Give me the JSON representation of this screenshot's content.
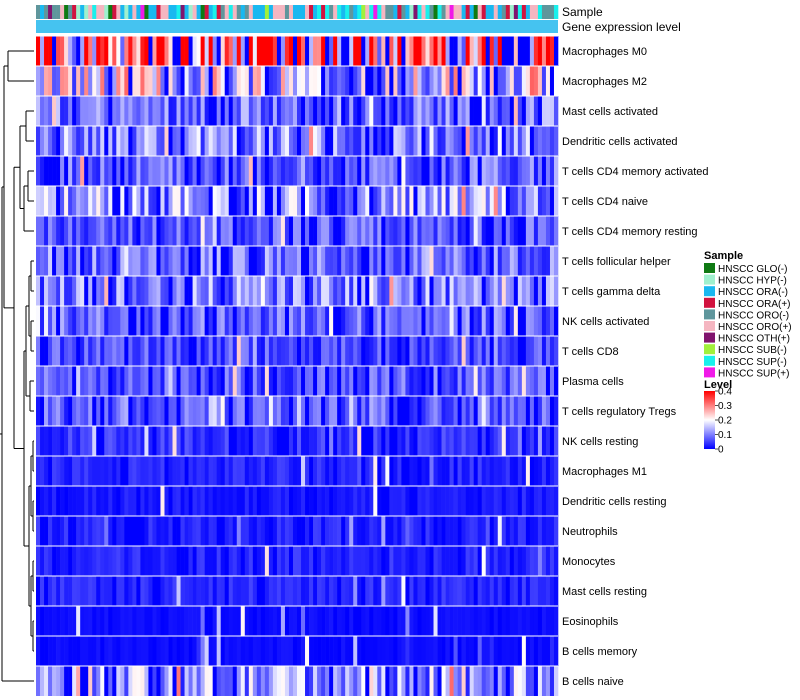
{
  "chart_data": {
    "type": "heatmap",
    "annotation_tracks": [
      "Sample",
      "Gene expression level"
    ],
    "rows": [
      {
        "label": "Macrophages M0",
        "level": 0.32
      },
      {
        "label": "Macrophages M2",
        "level": 0.18
      },
      {
        "label": "Mast cells activated",
        "level": 0.09
      },
      {
        "label": "Dendritic cells activated",
        "level": 0.11
      },
      {
        "label": "T cells CD4 memory activated",
        "level": 0.08
      },
      {
        "label": "T cells CD4 naive",
        "level": 0.12
      },
      {
        "label": "T cells CD4 memory resting",
        "level": 0.07
      },
      {
        "label": "T cells follicular helper",
        "level": 0.09
      },
      {
        "label": "T cells gamma delta",
        "level": 0.1
      },
      {
        "label": "NK cells activated",
        "level": 0.08
      },
      {
        "label": "T cells CD8",
        "level": 0.06
      },
      {
        "label": "Plasma cells",
        "level": 0.07
      },
      {
        "label": "T cells regulatory  Tregs",
        "level": 0.07
      },
      {
        "label": "NK cells resting",
        "level": 0.04
      },
      {
        "label": "Macrophages M1",
        "level": 0.03
      },
      {
        "label": "Dendritic cells resting",
        "level": 0.02
      },
      {
        "label": "Neutrophils",
        "level": 0.03
      },
      {
        "label": "Monocytes",
        "level": 0.03
      },
      {
        "label": "Mast cells resting",
        "level": 0.03
      },
      {
        "label": "Eosinophils",
        "level": 0.01
      },
      {
        "label": "B cells memory",
        "level": 0.01
      },
      {
        "label": "B cells naive",
        "level": 0.12
      }
    ],
    "num_samples": 130,
    "sample_legend": {
      "title": "Sample",
      "entries": [
        {
          "label": "HNSCC GLO(-)",
          "color": "#0f7a13"
        },
        {
          "label": "HNSCC HYP(-)",
          "color": "#9ff0ce"
        },
        {
          "label": "HNSCC ORA(-)",
          "color": "#19b8f0"
        },
        {
          "label": "HNSCC ORA(+)",
          "color": "#d1133f"
        },
        {
          "label": "HNSCC ORO(-)",
          "color": "#5f969c"
        },
        {
          "label": "HNSCC ORO(+)",
          "color": "#f5b6c1"
        },
        {
          "label": "HNSCC OTH(+)",
          "color": "#80146e"
        },
        {
          "label": "HNSCC SUB(-)",
          "color": "#a1f03c"
        },
        {
          "label": "HNSCC SUP(-)",
          "color": "#19f0ec"
        },
        {
          "label": "HNSCC SUP(+)",
          "color": "#f01ae8"
        }
      ]
    },
    "level_legend": {
      "title": "Level",
      "ticks": [
        0.4,
        0.3,
        0.2,
        0.1,
        0
      ],
      "tick_labels": [
        "0.4",
        "0.3",
        "0.2",
        "0.1",
        "0"
      ],
      "range": [
        0,
        0.4
      ]
    },
    "color_scale": {
      "low": "#0000ff",
      "mid": "#ffffff",
      "high": "#ff0000",
      "midpoint": 0.2
    },
    "gene_expression_color": "#45c3f0"
  }
}
